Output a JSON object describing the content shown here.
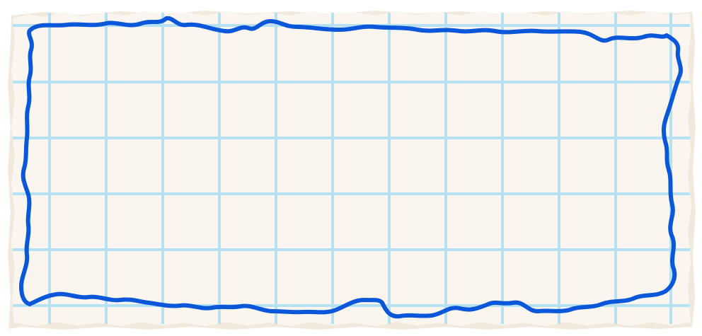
{
  "colors": {
    "background": "#ffffff",
    "paper": "#faf6ef",
    "paper_shadow": "#f1e9dc",
    "grid": "#b6e1f2",
    "stroke": "#0a57d9"
  }
}
